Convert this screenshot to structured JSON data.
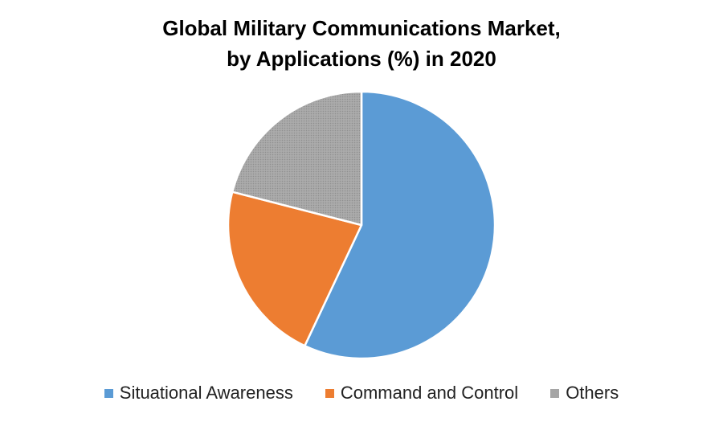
{
  "chart_data": {
    "type": "pie",
    "title_line1": "Global Military Communications Market,",
    "title_line2": "by Applications (%) in 2020",
    "series": [
      {
        "name": "Situational Awareness",
        "value": 57,
        "color": "#5B9BD5"
      },
      {
        "name": "Command and Control",
        "value": 22,
        "color": "#ED7D31"
      },
      {
        "name": "Others",
        "value": 21,
        "color": "#A5A5A5"
      }
    ],
    "legend_position": "bottom",
    "start_angle_deg": 0,
    "direction": "clockwise"
  }
}
